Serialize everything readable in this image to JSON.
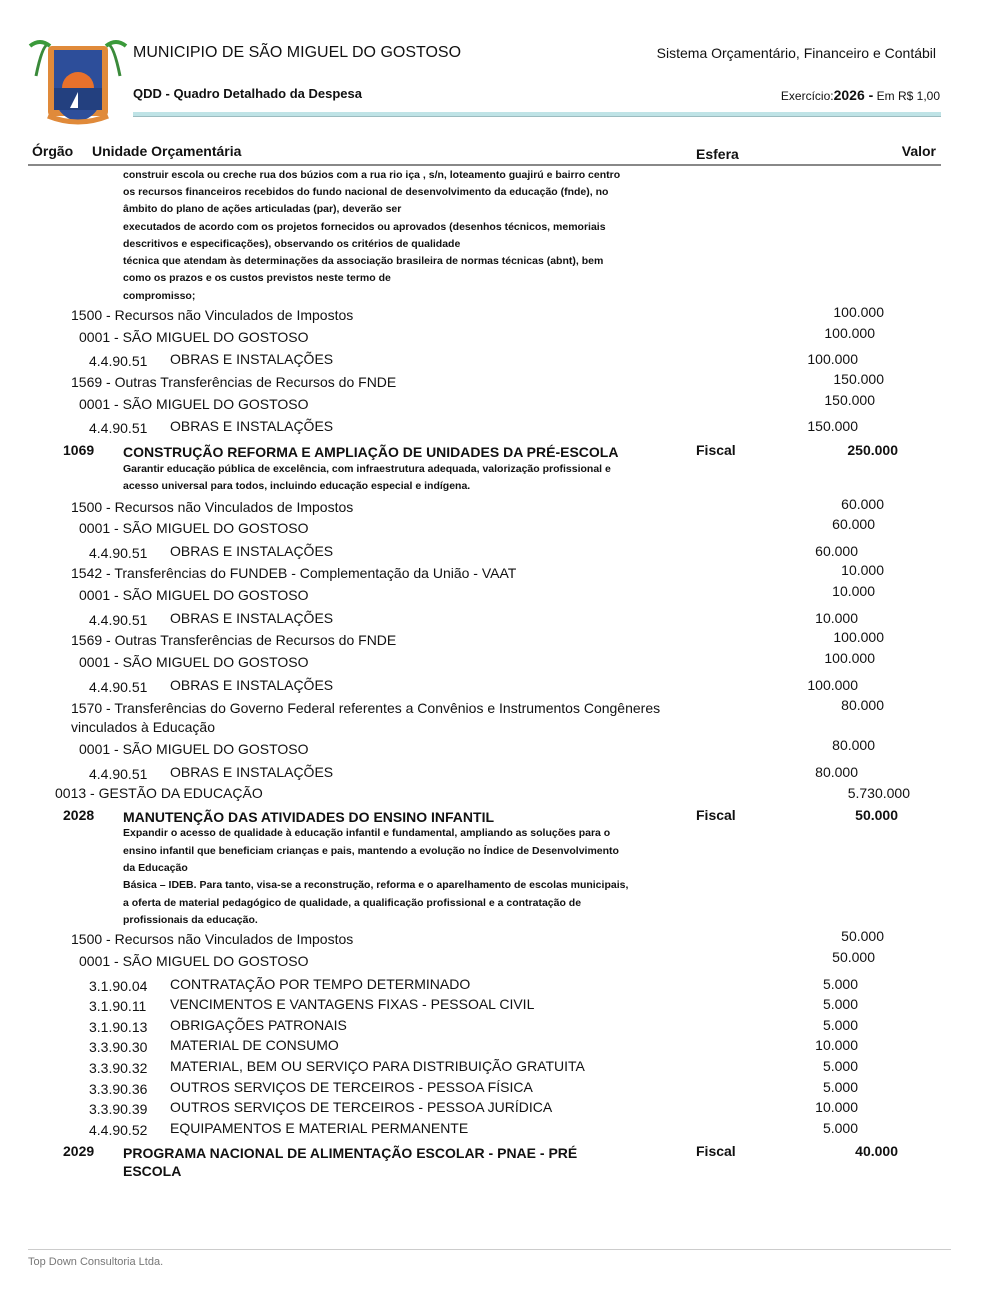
{
  "header": {
    "municipality": "MUNICIPIO DE SÃO MIGUEL DO GOSTOSO",
    "report": "QDD - Quadro Detalhado da Despesa",
    "system": "Sistema Orçamentário, Financeiro e Contábil",
    "exercicio_label": "Exercício:",
    "exercicio_year": "2026 -",
    "currency": " Em R$ 1,00",
    "logo": "municipal-coat-of-arms"
  },
  "columns": {
    "orgao": "Órgão",
    "unidade": "Unidade Orçamentária",
    "esfera": "Esfera",
    "valor": "Valor"
  },
  "rows": [
    {
      "type": "desc",
      "text": "construir escola ou creche rua dos búzios com a rua rio iça , s/n, loteamento guajirú e bairro centro"
    },
    {
      "type": "desc",
      "text": "os recursos financeiros recebidos do fundo nacional de desenvolvimento da educação (fnde), no"
    },
    {
      "type": "desc",
      "text": "âmbito do plano de ações articuladas (par), deverão ser"
    },
    {
      "type": "desc",
      "text": "executados de acordo com os projetos fornecidos ou aprovados (desenhos técnicos, memoriais"
    },
    {
      "type": "desc",
      "text": "descritivos e especificações), observando os critérios de qualidade"
    },
    {
      "type": "desc",
      "text": "técnica que atendam às determinações da associação brasileira de normas técnicas (abnt), bem"
    },
    {
      "type": "desc",
      "text": "como os prazos e os custos previstos neste termo de"
    },
    {
      "type": "desc",
      "text": "compromisso;"
    },
    {
      "type": "fonte",
      "label": "1500 - Recursos não Vinculados de Impostos",
      "value": "100.000"
    },
    {
      "type": "unit",
      "label": "0001 - SÃO MIGUEL DO GOSTOSO",
      "value": "100.000"
    },
    {
      "type": "elem",
      "code": "4.4.90.51",
      "label": "OBRAS E INSTALAÇÕES",
      "value": "100.000"
    },
    {
      "type": "fonte",
      "label": "1569 - Outras Transferências de Recursos do FNDE",
      "value": "150.000"
    },
    {
      "type": "unit",
      "label": "0001 - SÃO MIGUEL DO GOSTOSO",
      "value": "150.000"
    },
    {
      "type": "elem",
      "code": "4.4.90.51",
      "label": "OBRAS E INSTALAÇÕES",
      "value": "150.000"
    },
    {
      "type": "action",
      "code": "1069",
      "label": "CONSTRUÇÃO REFORMA E AMPLIAÇÃO DE UNIDADES DA PRÉ-ESCOLA",
      "esfera": "Fiscal",
      "value": "250.000"
    },
    {
      "type": "desc",
      "text": "Garantir educação pública de excelência, com infraestrutura adequada, valorização profissional e"
    },
    {
      "type": "desc",
      "text": "acesso universal para todos, incluindo educação especial e indígena."
    },
    {
      "type": "fonte",
      "label": "1500 - Recursos não Vinculados de Impostos",
      "value": "60.000"
    },
    {
      "type": "unit",
      "label": "0001 - SÃO MIGUEL DO GOSTOSO",
      "value": "60.000"
    },
    {
      "type": "elem",
      "code": "4.4.90.51",
      "label": "OBRAS E INSTALAÇÕES",
      "value": "60.000"
    },
    {
      "type": "fonte",
      "label": "1542 - Transferências do FUNDEB - Complementação da União - VAAT",
      "value": "10.000"
    },
    {
      "type": "unit",
      "label": "0001 - SÃO MIGUEL DO GOSTOSO",
      "value": "10.000"
    },
    {
      "type": "elem",
      "code": "4.4.90.51",
      "label": "OBRAS E INSTALAÇÕES",
      "value": "10.000"
    },
    {
      "type": "fonte",
      "label": "1569 - Outras Transferências de Recursos do FNDE",
      "value": "100.000"
    },
    {
      "type": "unit",
      "label": "0001 - SÃO MIGUEL DO GOSTOSO",
      "value": "100.000"
    },
    {
      "type": "elem",
      "code": "4.4.90.51",
      "label": "OBRAS E INSTALAÇÕES",
      "value": "100.000"
    },
    {
      "type": "fonte",
      "label": "1570 - Transferências do Governo Federal referentes a Convênios e Instrumentos Congêneres",
      "value": "80.000"
    },
    {
      "type": "fonte2",
      "label": "vinculados à Educação"
    },
    {
      "type": "unit",
      "label": "0001 - SÃO MIGUEL DO GOSTOSO",
      "value": "80.000"
    },
    {
      "type": "elem",
      "code": "4.4.90.51",
      "label": "OBRAS E INSTALAÇÕES",
      "value": "80.000"
    },
    {
      "type": "uo",
      "label": "0013 - GESTÃO DA EDUCAÇÃO",
      "value": "5.730.000"
    },
    {
      "type": "action",
      "code": "2028",
      "label": "MANUTENÇÃO DAS ATIVIDADES DO ENSINO INFANTIL",
      "esfera": "Fiscal",
      "value": "50.000"
    },
    {
      "type": "desc",
      "text": "Expandir o acesso de qualidade à educação infantil e fundamental, ampliando as soluções para o"
    },
    {
      "type": "desc",
      "text": "ensino infantil que beneficiam crianças e pais, mantendo a evolução no Índice de Desenvolvimento"
    },
    {
      "type": "desc",
      "text": "da Educação"
    },
    {
      "type": "desc",
      "text": "Básica – IDEB. Para tanto, visa-se a reconstrução, reforma e o aparelhamento de escolas municipais,"
    },
    {
      "type": "desc",
      "text": "a oferta de material pedagógico de qualidade, a qualificação profissional e a contratação de"
    },
    {
      "type": "desc",
      "text": "profissionais da educação."
    },
    {
      "type": "fonte",
      "label": "1500 - Recursos não Vinculados de Impostos",
      "value": "50.000"
    },
    {
      "type": "unit",
      "label": "0001 - SÃO MIGUEL DO GOSTOSO",
      "value": "50.000"
    },
    {
      "type": "elem",
      "code": "3.1.90.04",
      "label": "CONTRATAÇÃO POR TEMPO DETERMINADO",
      "value": "5.000"
    },
    {
      "type": "elem",
      "code": "3.1.90.11",
      "label": "VENCIMENTOS E VANTAGENS FIXAS - PESSOAL CIVIL",
      "value": "5.000"
    },
    {
      "type": "elem",
      "code": "3.1.90.13",
      "label": "OBRIGAÇÕES PATRONAIS",
      "value": "5.000"
    },
    {
      "type": "elem",
      "code": "3.3.90.30",
      "label": "MATERIAL DE CONSUMO",
      "value": "10.000"
    },
    {
      "type": "elem",
      "code": "3.3.90.32",
      "label": "MATERIAL, BEM OU SERVIÇO PARA DISTRIBUIÇÃO GRATUITA",
      "value": "5.000"
    },
    {
      "type": "elem",
      "code": "3.3.90.36",
      "label": "OUTROS SERVIÇOS DE TERCEIROS - PESSOA FÍSICA",
      "value": "5.000"
    },
    {
      "type": "elem",
      "code": "3.3.90.39",
      "label": "OUTROS SERVIÇOS DE TERCEIROS - PESSOA JURÍDICA",
      "value": "10.000"
    },
    {
      "type": "elem",
      "code": "4.4.90.52",
      "label": "EQUIPAMENTOS E MATERIAL PERMANENTE",
      "value": "5.000"
    },
    {
      "type": "action",
      "code": "2029",
      "label": "PROGRAMA NACIONAL DE ALIMENTAÇÃO ESCOLAR - PNAE - PRÉ",
      "esfera": "Fiscal",
      "value": "40.000"
    },
    {
      "type": "action2",
      "label": "ESCOLA"
    }
  ],
  "footer": {
    "company": "Top Down Consultoria Ltda."
  }
}
